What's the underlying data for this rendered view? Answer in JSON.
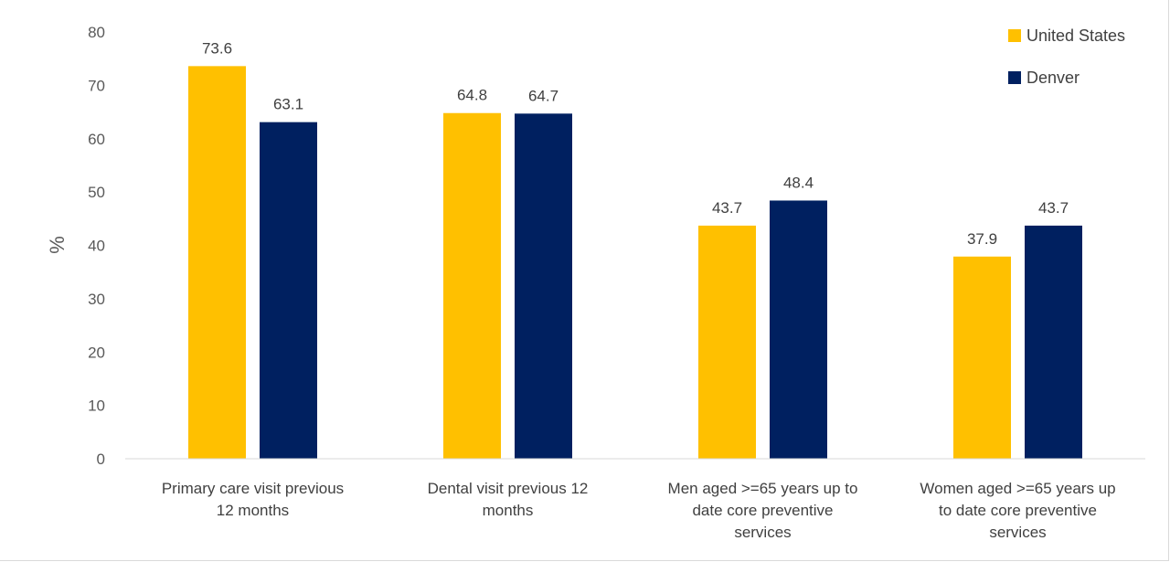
{
  "chart_data": {
    "type": "bar",
    "title": "",
    "xlabel": "",
    "ylabel": "%",
    "ylim": [
      0,
      80
    ],
    "yticks": [
      0,
      10,
      20,
      30,
      40,
      50,
      60,
      70,
      80
    ],
    "categories": [
      [
        "Primary care visit previous",
        "12 months"
      ],
      [
        "Dental visit previous 12",
        "months"
      ],
      [
        "Men aged >=65 years up to",
        "date core preventive",
        "services"
      ],
      [
        "Women aged >=65 years up",
        "to date core preventive",
        "services"
      ]
    ],
    "series": [
      {
        "name": "United States",
        "color": "#FFC000",
        "values": [
          73.6,
          64.8,
          43.7,
          37.9
        ]
      },
      {
        "name": "Denver",
        "color": "#002060",
        "values": [
          63.1,
          64.7,
          48.4,
          43.7
        ]
      }
    ],
    "legend_position": "top-right",
    "grid": false
  }
}
